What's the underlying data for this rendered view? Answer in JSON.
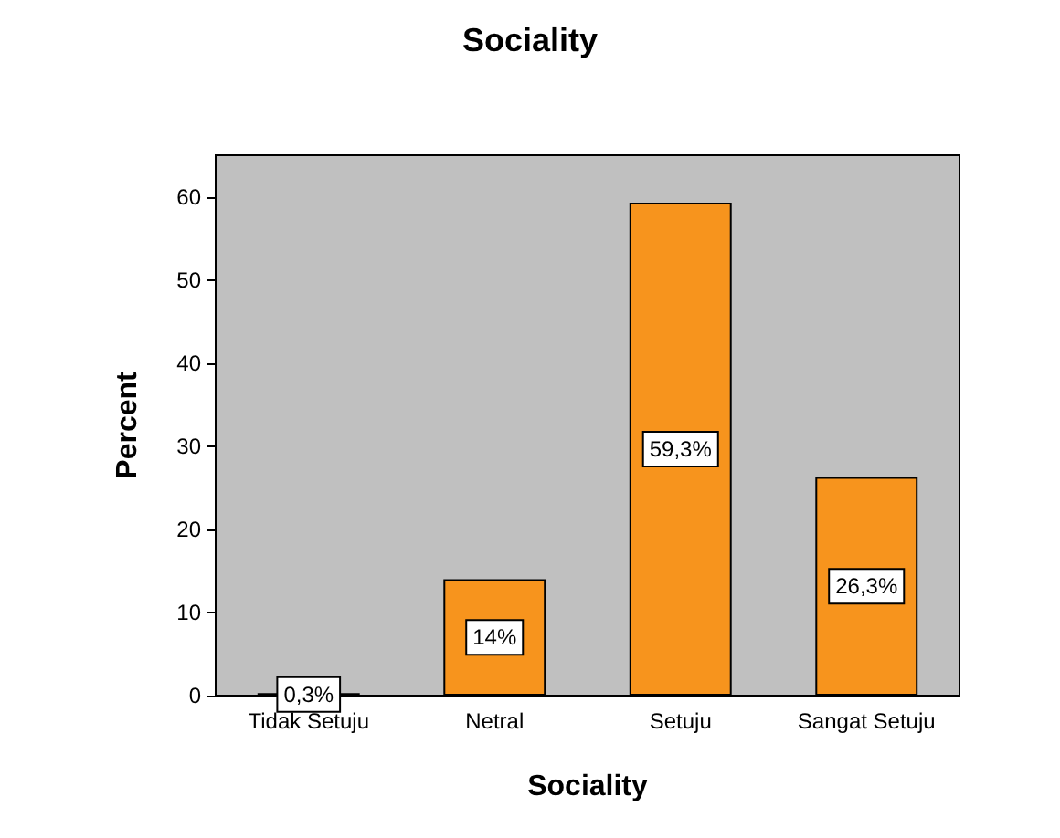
{
  "chart_data": {
    "type": "bar",
    "title": "Sociality",
    "xlabel": "Sociality",
    "ylabel": "Percent",
    "categories": [
      "Tidak Setuju",
      "Netral",
      "Setuju",
      "Sangat Setuju"
    ],
    "values": [
      0.3,
      14,
      59.3,
      26.3
    ],
    "value_labels": [
      "0,3%",
      "14%",
      "59,3%",
      "26,3%"
    ],
    "color": "#f7941d",
    "ylim": [
      0,
      65
    ],
    "yticks": [
      0,
      10,
      20,
      30,
      40,
      50,
      60
    ],
    "grid": false
  }
}
